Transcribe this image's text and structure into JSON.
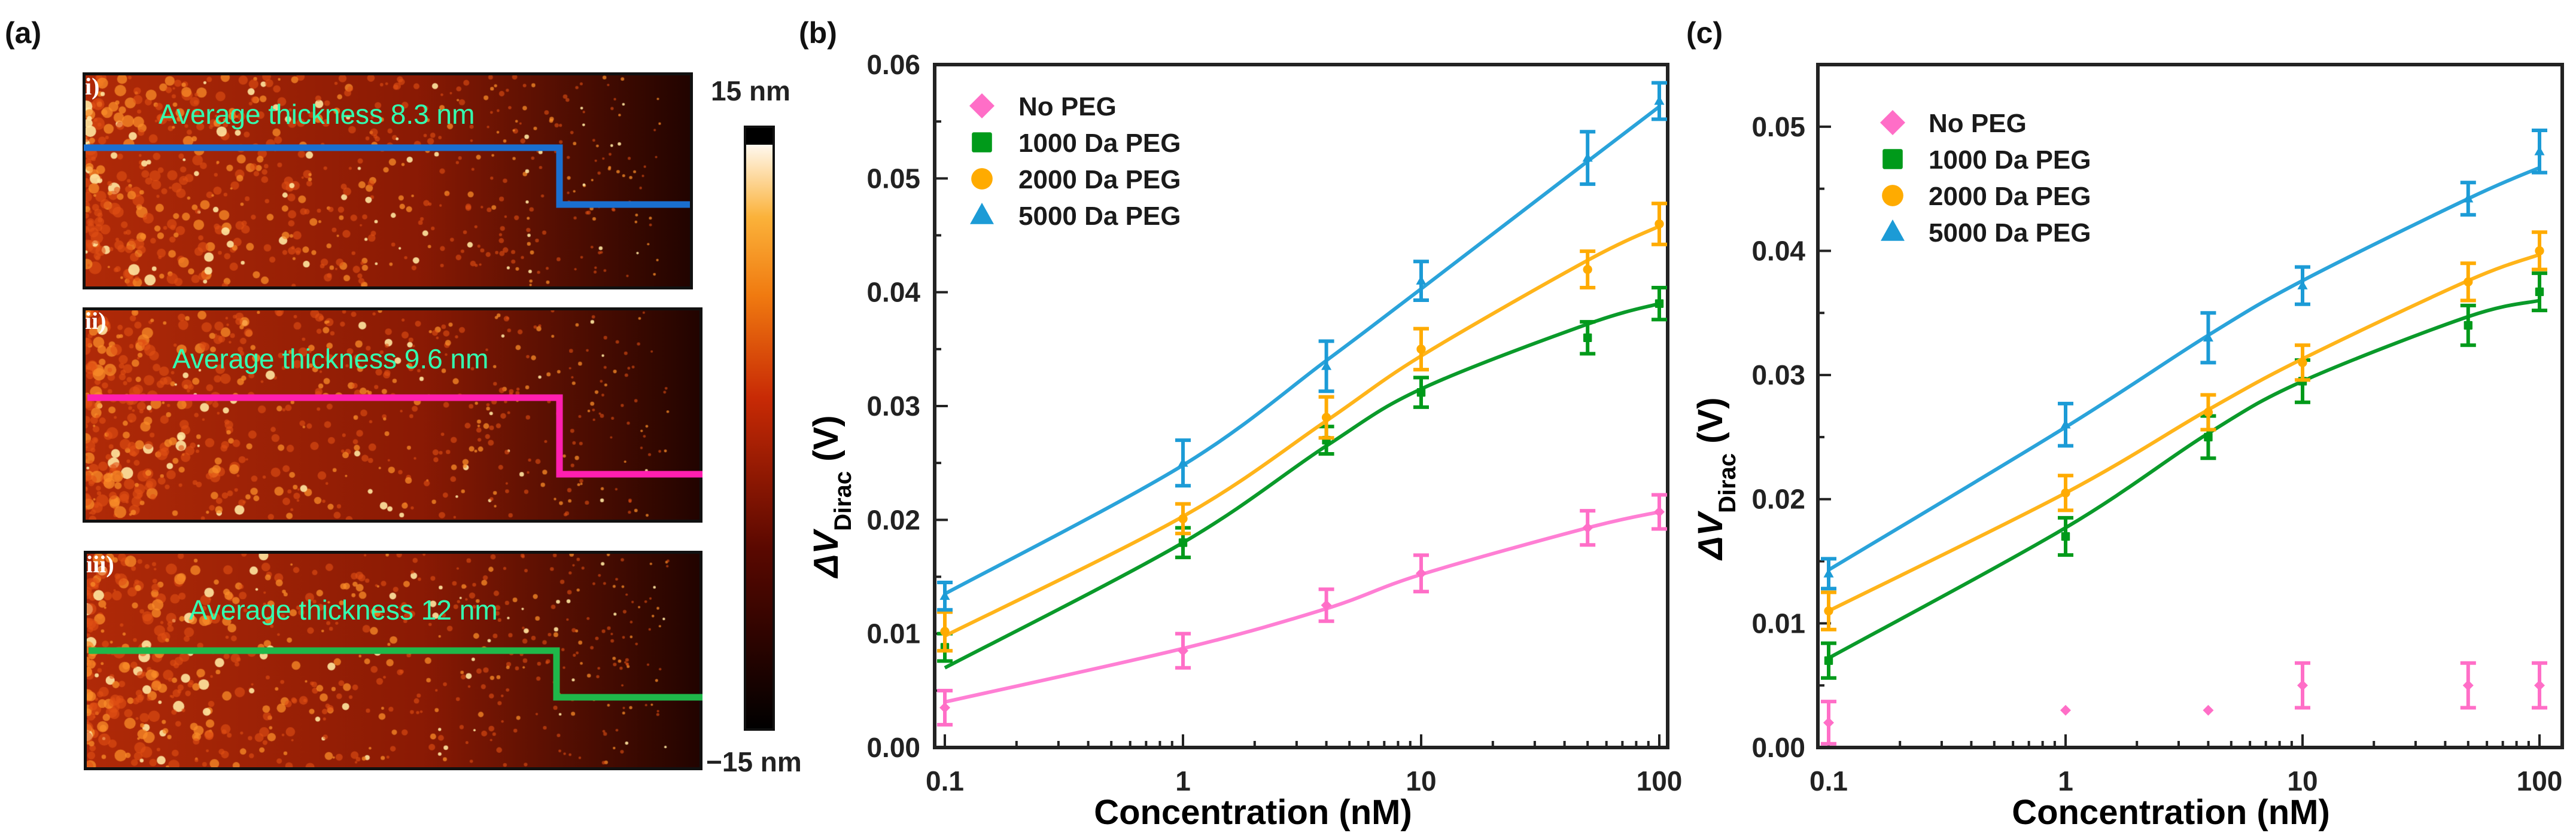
{
  "panel_labels": {
    "a": "(a)",
    "b": "(b)",
    "c": "(c)"
  },
  "panel_a": {
    "text_color": "#33ffb0",
    "images": [
      {
        "label": "i)",
        "text": "Average thickness 8.3 nm",
        "line_color": "#1a6fd0"
      },
      {
        "label": "ii)",
        "text": "Average thickness 9.6 nm",
        "line_color": "#ff1fb0"
      },
      {
        "label": "iii)",
        "text": "Average thickness 12 nm",
        "line_color": "#1fb84a"
      }
    ],
    "colorbar": {
      "max_label": "15 nm",
      "min_label": "−15 nm",
      "range_nm": [
        -15,
        15
      ]
    }
  },
  "chart_data": [
    {
      "id": "b",
      "type": "scatter",
      "x_scale": "log",
      "xlabel": "Concentration (nM)",
      "ylabel_main": "ΔV",
      "ylabel_sub": "Dirac",
      "ylabel_unit": " (V)",
      "xlim": [
        0.1,
        100
      ],
      "ylim": [
        0,
        0.06
      ],
      "xticks": [
        "0.1",
        "1",
        "10",
        "100"
      ],
      "yticks": [
        "0.00",
        "0.01",
        "0.02",
        "0.03",
        "0.04",
        "0.05",
        "0.06"
      ],
      "legend_position": "top-left",
      "x": [
        0.1,
        1,
        4,
        10,
        50,
        100
      ],
      "series": [
        {
          "name": "No PEG",
          "marker": "diamond",
          "color": "#ff6ec7",
          "line_color": "#ff7fd4",
          "values": [
            0.0035,
            0.0085,
            0.0125,
            0.0153,
            0.0193,
            0.0207
          ],
          "errors": [
            0.0015,
            0.0015,
            0.0014,
            0.0016,
            0.0015,
            0.0015
          ],
          "fit": [
            0.004,
            0.0087,
            0.0122,
            0.0152,
            0.0193,
            0.0207
          ]
        },
        {
          "name": "1000 Da PEG",
          "marker": "square",
          "color": "#009a1a",
          "line_color": "#0a9a2a",
          "values": [
            0.0088,
            0.018,
            0.027,
            0.0312,
            0.036,
            0.039
          ],
          "errors": [
            0.0012,
            0.0013,
            0.0012,
            0.0013,
            0.0014,
            0.0014
          ],
          "fit": [
            0.007,
            0.018,
            0.0265,
            0.0315,
            0.0372,
            0.039
          ]
        },
        {
          "name": "2000 Da PEG",
          "marker": "circle",
          "color": "#ffab00",
          "line_color": "#ffb41a",
          "values": [
            0.0102,
            0.0201,
            0.029,
            0.035,
            0.042,
            0.046
          ],
          "errors": [
            0.0017,
            0.0013,
            0.0018,
            0.0018,
            0.0016,
            0.0018
          ],
          "fit": [
            0.0098,
            0.0203,
            0.0287,
            0.0344,
            0.0428,
            0.0458
          ]
        },
        {
          "name": "5000 Da PEG",
          "marker": "triangle",
          "color": "#1c9bd6",
          "line_color": "#2aa3da",
          "values": [
            0.0133,
            0.025,
            0.0335,
            0.041,
            0.0518,
            0.0568
          ],
          "errors": [
            0.0012,
            0.002,
            0.0022,
            0.0017,
            0.0023,
            0.0016
          ],
          "fit": [
            0.0135,
            0.0248,
            0.034,
            0.0403,
            0.0515,
            0.0563
          ]
        }
      ]
    },
    {
      "id": "c",
      "type": "scatter",
      "x_scale": "log",
      "xlabel": "Concentration (nM)",
      "ylabel_main": "ΔV",
      "ylabel_sub": "Dirac",
      "ylabel_unit": " (V)",
      "xlim": [
        0.1,
        100
      ],
      "ylim": [
        0,
        0.055
      ],
      "xticks": [
        "0.1",
        "1",
        "10",
        "100"
      ],
      "yticks": [
        "0.00",
        "0.01",
        "0.02",
        "0.03",
        "0.04",
        "0.05"
      ],
      "legend_position": "top-left",
      "x": [
        0.1,
        1,
        4,
        10,
        50,
        100
      ],
      "series": [
        {
          "name": "No PEG",
          "marker": "diamond",
          "color": "#ff6ec7",
          "line_color": "#ff7fd4",
          "values": [
            0.002,
            0.003,
            0.003,
            0.005,
            0.005,
            0.005
          ],
          "errors": [
            0.0017,
            0,
            0,
            0.0018,
            0.0018,
            0.0018
          ],
          "fit": null
        },
        {
          "name": "1000 Da PEG",
          "marker": "square",
          "color": "#009a1a",
          "line_color": "#0a9a2a",
          "values": [
            0.007,
            0.017,
            0.025,
            0.0295,
            0.034,
            0.0367
          ],
          "errors": [
            0.0014,
            0.0015,
            0.0017,
            0.0017,
            0.0016,
            0.0015
          ],
          "fit": [
            0.0072,
            0.0177,
            0.0253,
            0.0295,
            0.0347,
            0.036
          ]
        },
        {
          "name": "2000 Da PEG",
          "marker": "circle",
          "color": "#ffab00",
          "line_color": "#ffb41a",
          "values": [
            0.011,
            0.0205,
            0.027,
            0.031,
            0.0375,
            0.04
          ],
          "errors": [
            0.0015,
            0.0014,
            0.0014,
            0.0014,
            0.0015,
            0.0015
          ],
          "fit": [
            0.011,
            0.0205,
            0.0272,
            0.0313,
            0.0376,
            0.0397
          ]
        },
        {
          "name": "5000 Da PEG",
          "marker": "triangle",
          "color": "#1c9bd6",
          "line_color": "#2aa3da",
          "values": [
            0.014,
            0.026,
            0.033,
            0.0372,
            0.0442,
            0.048
          ],
          "errors": [
            0.0012,
            0.0017,
            0.002,
            0.0015,
            0.0013,
            0.0017
          ],
          "fit": [
            0.0143,
            0.0258,
            0.0332,
            0.0376,
            0.0442,
            0.0467
          ]
        }
      ]
    }
  ]
}
